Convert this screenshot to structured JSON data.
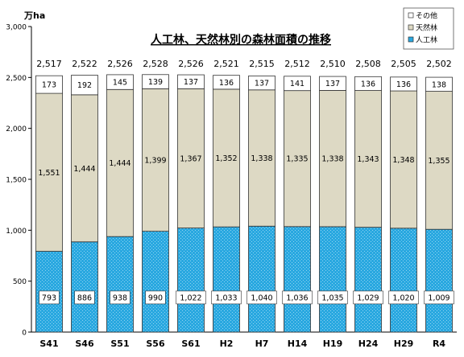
{
  "chart_data": {
    "type": "bar",
    "stacked": true,
    "title": "人工林、天然林別の森林面積の推移",
    "unit": "万ha",
    "categories": [
      "S41",
      "S46",
      "S51",
      "S56",
      "S61",
      "H2",
      "H7",
      "H14",
      "H19",
      "H24",
      "H29",
      "R4"
    ],
    "series": [
      {
        "name": "人工林",
        "color": "#29a8e0",
        "values": [
          793,
          886,
          938,
          990,
          1022,
          1033,
          1040,
          1036,
          1035,
          1029,
          1020,
          1009
        ]
      },
      {
        "name": "天然林",
        "color": "#ddd9c4",
        "values": [
          1551,
          1444,
          1444,
          1399,
          1367,
          1352,
          1338,
          1335,
          1338,
          1343,
          1348,
          1355
        ]
      },
      {
        "name": "その他",
        "color": "#ffffff",
        "values": [
          173,
          192,
          145,
          139,
          137,
          136,
          137,
          141,
          137,
          136,
          136,
          138
        ]
      }
    ],
    "totals": [
      2517,
      2522,
      2526,
      2528,
      2526,
      2521,
      2515,
      2512,
      2510,
      2508,
      2505,
      2502
    ],
    "legend_order": [
      "その他",
      "天然林",
      "人工林"
    ],
    "legend_position": "top-right",
    "ylim": [
      0,
      3000
    ],
    "yticks": [
      0,
      500,
      1000,
      1500,
      2000,
      2500,
      3000
    ],
    "ytick_labels": [
      "0",
      "500",
      "1,000",
      "1,500",
      "2,000",
      "2,500",
      "3,000"
    ],
    "grid": false
  }
}
